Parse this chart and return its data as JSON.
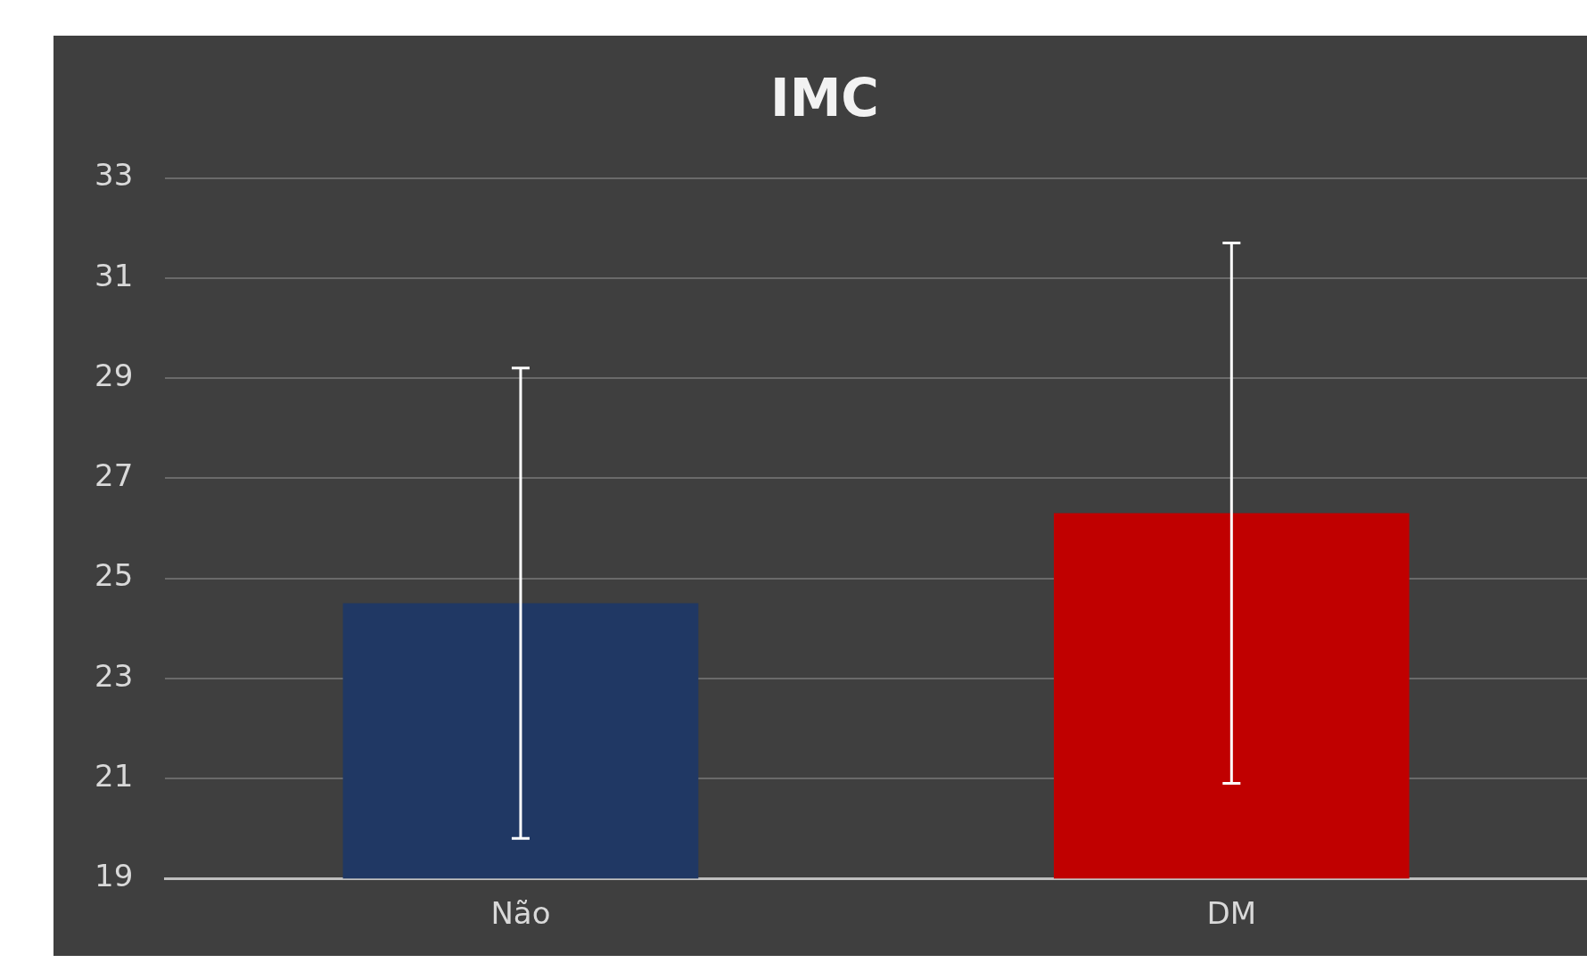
{
  "chart_data": {
    "type": "bar",
    "title": "IMC",
    "categories": [
      "Não",
      "DM"
    ],
    "values": [
      24.5,
      26.3
    ],
    "colors": [
      "#203864",
      "#c00000"
    ],
    "errors": [
      4.7,
      5.4
    ],
    "ylim": [
      19,
      33
    ],
    "yticks": [
      19,
      21,
      23,
      25,
      27,
      29,
      31,
      33
    ],
    "grid": "y"
  }
}
